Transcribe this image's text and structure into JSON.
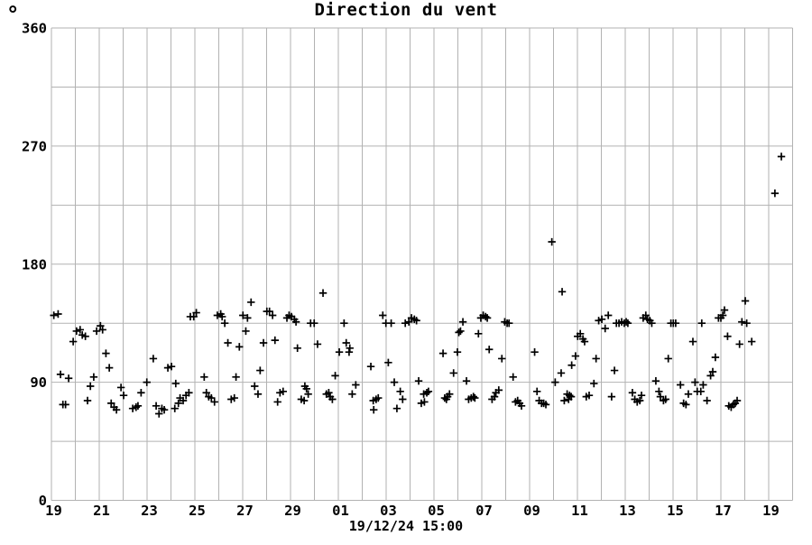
{
  "chart_data": {
    "type": "scatter",
    "title": "Direction du vent",
    "y_unit": "°",
    "xlabel": "19/12/24 15:00",
    "marker": "+",
    "marker_color": "#000000",
    "grid_color": "#b2b2b2",
    "text_color": "#000000",
    "background": "#ffffff",
    "xlim_days": [
      0,
      31
    ],
    "ylim": [
      0,
      360
    ],
    "x_gridline_step_days": 1,
    "y_gridline_step": 45,
    "legend": "none",
    "x_ticks": {
      "positions_days": [
        0,
        2,
        4,
        6,
        8,
        10,
        12,
        14,
        16,
        18,
        20,
        22,
        24,
        26,
        28,
        30
      ],
      "labels": [
        "19",
        "21",
        "23",
        "25",
        "27",
        "29",
        "01",
        "03",
        "05",
        "07",
        "09",
        "11",
        "13",
        "15",
        "17",
        "19"
      ]
    },
    "y_ticks": {
      "values": [
        0,
        90,
        180,
        270,
        360
      ],
      "labels": [
        "0",
        "90",
        "180",
        "270",
        "360"
      ]
    },
    "points": [
      [
        0.1,
        141
      ],
      [
        0.28,
        142
      ],
      [
        0.38,
        96
      ],
      [
        0.48,
        73
      ],
      [
        0.59,
        73
      ],
      [
        0.72,
        93
      ],
      [
        0.91,
        121
      ],
      [
        1.05,
        129
      ],
      [
        1.2,
        130
      ],
      [
        1.29,
        126
      ],
      [
        1.42,
        125
      ],
      [
        1.51,
        76
      ],
      [
        1.63,
        87
      ],
      [
        1.77,
        94
      ],
      [
        1.89,
        129
      ],
      [
        2.05,
        133
      ],
      [
        2.14,
        130
      ],
      [
        2.28,
        112
      ],
      [
        2.42,
        101
      ],
      [
        2.5,
        74
      ],
      [
        2.62,
        71
      ],
      [
        2.72,
        69
      ],
      [
        2.91,
        86
      ],
      [
        3.02,
        80
      ],
      [
        3.4,
        70
      ],
      [
        3.54,
        71
      ],
      [
        3.62,
        72
      ],
      [
        3.75,
        82
      ],
      [
        3.99,
        90
      ],
      [
        4.26,
        108
      ],
      [
        4.38,
        72
      ],
      [
        4.5,
        66
      ],
      [
        4.62,
        70
      ],
      [
        4.72,
        69
      ],
      [
        4.87,
        101
      ],
      [
        5.02,
        102
      ],
      [
        5.16,
        70
      ],
      [
        5.2,
        89
      ],
      [
        5.31,
        74
      ],
      [
        5.38,
        78
      ],
      [
        5.51,
        76
      ],
      [
        5.63,
        80
      ],
      [
        5.75,
        82
      ],
      [
        5.81,
        140
      ],
      [
        5.95,
        140
      ],
      [
        6.06,
        143
      ],
      [
        6.39,
        94
      ],
      [
        6.48,
        82
      ],
      [
        6.58,
        79
      ],
      [
        6.69,
        78
      ],
      [
        6.82,
        75
      ],
      [
        6.94,
        141
      ],
      [
        7.08,
        142
      ],
      [
        7.14,
        140
      ],
      [
        7.25,
        135
      ],
      [
        7.38,
        120
      ],
      [
        7.52,
        77
      ],
      [
        7.65,
        78
      ],
      [
        7.72,
        94
      ],
      [
        7.86,
        117
      ],
      [
        8.01,
        141
      ],
      [
        8.13,
        129
      ],
      [
        8.2,
        139
      ],
      [
        8.35,
        151
      ],
      [
        8.5,
        87
      ],
      [
        8.64,
        81
      ],
      [
        8.73,
        99
      ],
      [
        8.87,
        120
      ],
      [
        9.01,
        144
      ],
      [
        9.12,
        144
      ],
      [
        9.25,
        141
      ],
      [
        9.35,
        122
      ],
      [
        9.46,
        75
      ],
      [
        9.56,
        82
      ],
      [
        9.69,
        83
      ],
      [
        9.85,
        139
      ],
      [
        9.94,
        141
      ],
      [
        10.04,
        140
      ],
      [
        10.16,
        138
      ],
      [
        10.23,
        136
      ],
      [
        10.29,
        116
      ],
      [
        10.45,
        77
      ],
      [
        10.57,
        76
      ],
      [
        10.6,
        87
      ],
      [
        10.67,
        85
      ],
      [
        10.74,
        81
      ],
      [
        10.84,
        135
      ],
      [
        10.99,
        135
      ],
      [
        11.13,
        119
      ],
      [
        11.36,
        158
      ],
      [
        11.5,
        81
      ],
      [
        11.6,
        82
      ],
      [
        11.66,
        79
      ],
      [
        11.75,
        77
      ],
      [
        11.87,
        95
      ],
      [
        12.04,
        113
      ],
      [
        12.24,
        135
      ],
      [
        12.33,
        120
      ],
      [
        12.45,
        113
      ],
      [
        12.48,
        116
      ],
      [
        12.58,
        81
      ],
      [
        12.73,
        88
      ],
      [
        13.36,
        102
      ],
      [
        13.46,
        76
      ],
      [
        13.48,
        69
      ],
      [
        13.58,
        77
      ],
      [
        13.67,
        78
      ],
      [
        13.86,
        141
      ],
      [
        13.99,
        135
      ],
      [
        14.09,
        105
      ],
      [
        14.21,
        135
      ],
      [
        14.34,
        90
      ],
      [
        14.45,
        70
      ],
      [
        14.59,
        83
      ],
      [
        14.69,
        77
      ],
      [
        14.8,
        135
      ],
      [
        14.95,
        136
      ],
      [
        15.06,
        139
      ],
      [
        15.18,
        138
      ],
      [
        15.27,
        137
      ],
      [
        15.36,
        91
      ],
      [
        15.47,
        74
      ],
      [
        15.57,
        81
      ],
      [
        15.6,
        75
      ],
      [
        15.7,
        82
      ],
      [
        15.77,
        83
      ],
      [
        16.38,
        112
      ],
      [
        16.45,
        78
      ],
      [
        16.52,
        77
      ],
      [
        16.57,
        79
      ],
      [
        16.65,
        81
      ],
      [
        16.82,
        97
      ],
      [
        16.98,
        113
      ],
      [
        17.04,
        128
      ],
      [
        17.11,
        129
      ],
      [
        17.21,
        136
      ],
      [
        17.36,
        91
      ],
      [
        17.45,
        77
      ],
      [
        17.56,
        78
      ],
      [
        17.65,
        79
      ],
      [
        17.71,
        78
      ],
      [
        17.86,
        127
      ],
      [
        17.96,
        139
      ],
      [
        18.06,
        141
      ],
      [
        18.16,
        140
      ],
      [
        18.23,
        139
      ],
      [
        18.31,
        115
      ],
      [
        18.43,
        77
      ],
      [
        18.53,
        79
      ],
      [
        18.59,
        82
      ],
      [
        18.71,
        84
      ],
      [
        18.84,
        108
      ],
      [
        18.96,
        136
      ],
      [
        19.06,
        135
      ],
      [
        19.14,
        135
      ],
      [
        19.31,
        94
      ],
      [
        19.41,
        75
      ],
      [
        19.5,
        76
      ],
      [
        19.58,
        74
      ],
      [
        19.66,
        72
      ],
      [
        20.21,
        113
      ],
      [
        20.31,
        83
      ],
      [
        20.4,
        76
      ],
      [
        20.5,
        74
      ],
      [
        20.59,
        74
      ],
      [
        20.68,
        73
      ],
      [
        20.93,
        197
      ],
      [
        21.07,
        90
      ],
      [
        21.32,
        97
      ],
      [
        21.36,
        159
      ],
      [
        21.45,
        76
      ],
      [
        21.57,
        81
      ],
      [
        21.63,
        77
      ],
      [
        21.67,
        80
      ],
      [
        21.74,
        79
      ],
      [
        21.76,
        103
      ],
      [
        21.92,
        110
      ],
      [
        22.01,
        125
      ],
      [
        22.12,
        127
      ],
      [
        22.23,
        123
      ],
      [
        22.3,
        121
      ],
      [
        22.37,
        79
      ],
      [
        22.49,
        80
      ],
      [
        22.69,
        89
      ],
      [
        22.78,
        108
      ],
      [
        22.89,
        137
      ],
      [
        23.02,
        138
      ],
      [
        23.16,
        131
      ],
      [
        23.29,
        141
      ],
      [
        23.43,
        79
      ],
      [
        23.55,
        99
      ],
      [
        23.63,
        135
      ],
      [
        23.74,
        135
      ],
      [
        23.85,
        136
      ],
      [
        23.96,
        135
      ],
      [
        24.04,
        136
      ],
      [
        24.11,
        135
      ],
      [
        24.3,
        82
      ],
      [
        24.4,
        77
      ],
      [
        24.5,
        75
      ],
      [
        24.61,
        76
      ],
      [
        24.68,
        80
      ],
      [
        24.75,
        139
      ],
      [
        24.86,
        141
      ],
      [
        24.93,
        138
      ],
      [
        25.03,
        137
      ],
      [
        25.11,
        135
      ],
      [
        25.28,
        91
      ],
      [
        25.41,
        83
      ],
      [
        25.47,
        79
      ],
      [
        25.6,
        76
      ],
      [
        25.69,
        77
      ],
      [
        25.8,
        108
      ],
      [
        25.91,
        135
      ],
      [
        26.01,
        135
      ],
      [
        26.11,
        135
      ],
      [
        26.31,
        88
      ],
      [
        26.44,
        74
      ],
      [
        26.54,
        73
      ],
      [
        26.64,
        81
      ],
      [
        26.83,
        121
      ],
      [
        26.92,
        90
      ],
      [
        27.01,
        83
      ],
      [
        27.16,
        83
      ],
      [
        27.2,
        135
      ],
      [
        27.26,
        88
      ],
      [
        27.42,
        76
      ],
      [
        27.57,
        95
      ],
      [
        27.66,
        98
      ],
      [
        27.77,
        109
      ],
      [
        27.9,
        139
      ],
      [
        28.0,
        139
      ],
      [
        28.08,
        141
      ],
      [
        28.15,
        145
      ],
      [
        28.28,
        125
      ],
      [
        28.33,
        72
      ],
      [
        28.43,
        71
      ],
      [
        28.52,
        73
      ],
      [
        28.6,
        74
      ],
      [
        28.68,
        76
      ],
      [
        28.78,
        119
      ],
      [
        28.88,
        136
      ],
      [
        29.02,
        152
      ],
      [
        29.08,
        135
      ],
      [
        29.29,
        121
      ],
      [
        30.26,
        234
      ],
      [
        30.53,
        262
      ]
    ]
  }
}
